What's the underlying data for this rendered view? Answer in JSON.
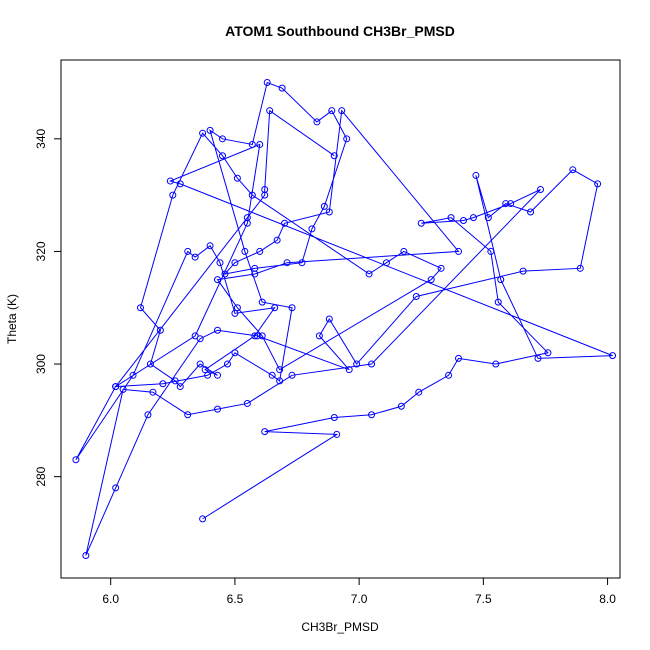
{
  "chart_data": {
    "type": "line",
    "title": "ATOM1 Southbound CH3Br_PMSD",
    "xlabel": "CH3Br_PMSD",
    "ylabel": "Theta (K)",
    "xlim": [
      5.8,
      8.05
    ],
    "ylim": [
      262,
      354
    ],
    "xticks": [
      6.0,
      6.5,
      7.0,
      7.5,
      8.0
    ],
    "xtick_labels": [
      "6.0",
      "6.5",
      "7.0",
      "7.5",
      "8.0"
    ],
    "yticks": [
      280,
      300,
      320,
      340
    ],
    "ytick_labels": [
      "280",
      "300",
      "320",
      "340"
    ],
    "grid": false,
    "legend": "none",
    "marker": "open-circle",
    "color": "#0000ff",
    "series": [
      {
        "x": [
          6.37,
          6.91,
          6.62,
          6.9,
          7.05,
          7.17,
          7.24,
          7.36,
          7.4,
          7.55,
          7.76,
          7.56,
          7.53,
          7.37,
          7.25,
          7.42,
          7.46,
          7.61,
          7.73,
          7.05,
          6.73,
          6.55,
          6.43,
          6.31,
          6.17,
          6.05,
          5.9,
          6.02,
          6.15,
          6.36,
          6.43,
          6.59,
          6.96,
          6.84,
          6.88,
          6.99,
          7.23,
          7.66,
          7.89,
          7.96,
          7.86,
          7.69,
          7.59,
          7.52,
          7.47,
          7.57,
          7.72,
          8.02,
          6.28,
          6.24,
          6.6,
          6.55,
          6.34,
          6.02,
          6.21,
          6.39,
          6.47,
          6.5,
          6.65,
          6.68,
          6.73,
          6.61,
          6.54,
          6.4,
          6.45,
          6.57,
          6.63,
          6.69,
          6.83,
          6.89,
          6.95,
          6.86,
          6.81,
          6.77,
          6.58,
          6.46,
          6.5,
          6.6,
          6.67,
          6.7,
          6.88,
          6.93,
          7.4,
          6.71,
          6.58,
          6.43,
          6.51,
          6.61,
          6.68,
          7.29,
          7.33,
          7.18,
          7.11,
          7.04,
          6.57,
          6.51,
          6.45,
          6.37,
          6.25,
          6.12,
          6.2,
          6.16,
          6.26,
          6.28,
          6.36,
          6.43,
          6.38,
          6.58,
          6.66,
          6.5,
          6.44,
          6.4,
          6.34,
          6.31,
          6.09,
          5.86,
          6.02,
          6.55,
          6.62,
          6.62,
          6.64,
          6.9
        ],
        "y": [
          272.5,
          287.5,
          288.0,
          290.5,
          291.0,
          292.5,
          295.0,
          298.0,
          301.0,
          300.0,
          302.0,
          311.0,
          320.0,
          326.0,
          325.0,
          325.5,
          326.0,
          328.5,
          331.0,
          300.0,
          298.0,
          293.0,
          292.0,
          291.0,
          295.0,
          295.5,
          266.0,
          278.0,
          291.0,
          304.5,
          306.0,
          305.0,
          299.0,
          305.0,
          308.0,
          300.0,
          312.0,
          316.5,
          317.0,
          332.0,
          334.5,
          327.0,
          328.5,
          326.0,
          333.5,
          315.0,
          301.0,
          301.5,
          332.0,
          332.5,
          339.0,
          325.0,
          305.0,
          296.0,
          296.5,
          298.0,
          300.0,
          302.0,
          298.0,
          297.0,
          310.0,
          311.0,
          320.0,
          341.5,
          340.0,
          339.0,
          350.0,
          349.0,
          343.0,
          345.0,
          340.0,
          328.0,
          324.0,
          318.0,
          317.0,
          316.0,
          318.0,
          320.0,
          322.0,
          325.0,
          327.0,
          345.0,
          320.0,
          318.0,
          316.0,
          315.0,
          310.0,
          305.0,
          299.0,
          315.0,
          317.0,
          320.0,
          318.0,
          316.0,
          330.0,
          333.0,
          337.0,
          341.0,
          330.0,
          310.0,
          306.0,
          300.0,
          297.0,
          296.0,
          300.0,
          298.0,
          299.0,
          305.0,
          310.0,
          309.0,
          318.0,
          321.0,
          319.0,
          320.0,
          298.0,
          283.0,
          296.0,
          326.0,
          330.0,
          331.0,
          345.0,
          337.0
        ]
      }
    ]
  }
}
